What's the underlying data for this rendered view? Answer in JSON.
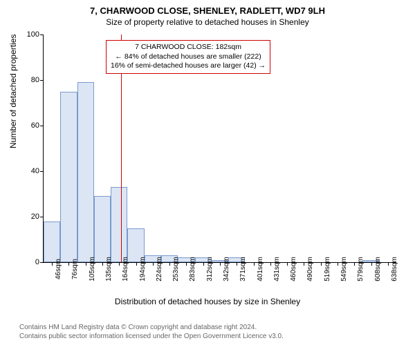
{
  "title_main": "7, CHARWOOD CLOSE, SHENLEY, RADLETT, WD7 9LH",
  "title_sub": "Size of property relative to detached houses in Shenley",
  "ylabel": "Number of detached properties",
  "xlabel": "Distribution of detached houses by size in Shenley",
  "chart": {
    "type": "histogram",
    "ylim": [
      0,
      100
    ],
    "ytick_step": 20,
    "bar_fill": "#dbe5f4",
    "bar_stroke": "#7a9acc",
    "background": "#ffffff",
    "marker_color": "#cc0000",
    "marker_x_index": 4.6,
    "categories": [
      "46sqm",
      "76sqm",
      "105sqm",
      "135sqm",
      "164sqm",
      "194sqm",
      "224sqm",
      "253sqm",
      "283sqm",
      "312sqm",
      "342sqm",
      "371sqm",
      "401sqm",
      "431sqm",
      "460sqm",
      "490sqm",
      "519sqm",
      "549sqm",
      "579sqm",
      "608sqm",
      "638sqm"
    ],
    "values": [
      18,
      75,
      79,
      29,
      33,
      15,
      3,
      3,
      2,
      2,
      1,
      2,
      0,
      0,
      0,
      0,
      0,
      0,
      0,
      1,
      0
    ]
  },
  "annotation": {
    "line1": "7 CHARWOOD CLOSE: 182sqm",
    "line2": "← 84% of detached houses are smaller (222)",
    "line3": "16% of semi-detached houses are larger (42) →"
  },
  "footer": {
    "line1": "Contains HM Land Registry data © Crown copyright and database right 2024.",
    "line2": "Contains public sector information licensed under the Open Government Licence v3.0."
  }
}
